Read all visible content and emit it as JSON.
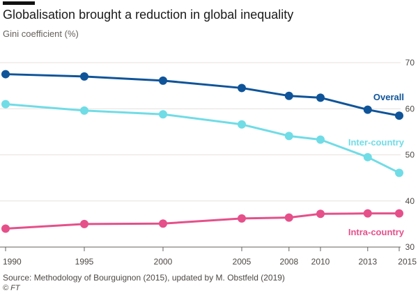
{
  "header": {
    "title": "Globalisation brought a reduction in global inequality",
    "subtitle": "Gini coefficient (%)"
  },
  "footer": {
    "source": "Source: Methodology of Bourguignon (2015), updated by M. Obstfeld (2019)",
    "credit": "© FT"
  },
  "colors": {
    "overall": "#0f5499",
    "inter": "#70dce6",
    "intra": "#e5508a",
    "grid": "#e6e1dd",
    "axis": "#66605c"
  },
  "chart_data": {
    "type": "line",
    "title": "Globalisation brought a reduction in global inequality",
    "ylabel": "Gini coefficient (%)",
    "xlabel": "",
    "x": [
      1990,
      1995,
      2000,
      2005,
      2008,
      2010,
      2013,
      2015
    ],
    "x_tick_labels": [
      "1990",
      "1995",
      "2000",
      "2005",
      "2008",
      "2010",
      "2013",
      "2015"
    ],
    "ylim": [
      30,
      70
    ],
    "y_ticks": [
      30,
      40,
      50,
      60,
      70
    ],
    "grid": true,
    "series": [
      {
        "name": "Overall",
        "color_key": "overall",
        "values": [
          67.5,
          67.0,
          66.1,
          64.5,
          62.8,
          62.4,
          59.8,
          58.5
        ]
      },
      {
        "name": "Inter-country",
        "color_key": "inter",
        "values": [
          61.0,
          59.6,
          58.8,
          56.6,
          54.1,
          53.3,
          49.5,
          46.1
        ]
      },
      {
        "name": "Intra-country",
        "color_key": "intra",
        "values": [
          34.0,
          35.0,
          35.1,
          36.2,
          36.4,
          37.2,
          37.3,
          37.3
        ]
      }
    ]
  }
}
